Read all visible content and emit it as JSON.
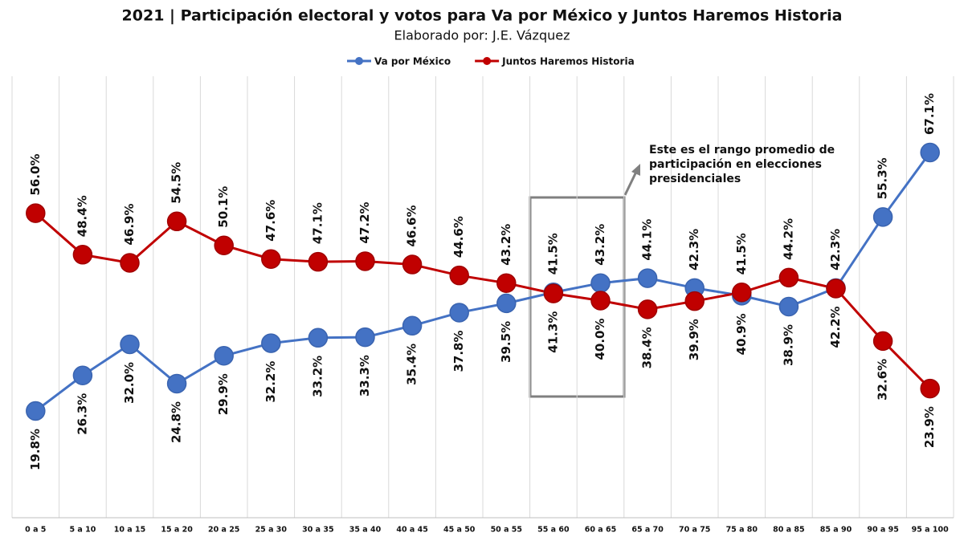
{
  "chart_data": {
    "type": "line",
    "title": "2021 | Participación electoral y votos para Va por México y Juntos Haremos Historia",
    "subtitle": "Elaborado por: J.E. Vázquez",
    "annotation": [
      "Este es el rango promedio de",
      "participación en elecciones",
      "presidenciales"
    ],
    "categories": [
      "0 a 5",
      "5 a 10",
      "10 a 15",
      "15 a 20",
      "20 a 25",
      "25 a 30",
      "30 a 35",
      "35 a 40",
      "40 a 45",
      "45 a 50",
      "50 a 55",
      "55 a 60",
      "60 a 65",
      "65 a 70",
      "70 a 75",
      "75 a 80",
      "80 a 85",
      "85 a 90",
      "90 a 95",
      "95 a 100"
    ],
    "series": [
      {
        "name": "Va por México",
        "color": "#4472c4",
        "values": [
          19.8,
          26.3,
          32.0,
          24.8,
          29.9,
          32.2,
          33.2,
          33.3,
          35.4,
          37.8,
          39.5,
          41.5,
          43.2,
          44.1,
          42.3,
          40.9,
          38.9,
          42.3,
          55.3,
          67.1
        ],
        "value_labels": [
          "19.8%",
          "26.3%",
          "32.0%",
          "24.8%",
          "29.9%",
          "32.2%",
          "33.2%",
          "33.3%",
          "35.4%",
          "37.8%",
          "39.5%",
          "41.5%",
          "43.2%",
          "44.1%",
          "42.3%",
          "40.9%",
          "38.9%",
          "42.3%",
          "55.3%",
          "67.1%"
        ]
      },
      {
        "name": "Juntos Haremos Historia",
        "color": "#c00000",
        "values": [
          56.0,
          48.4,
          46.9,
          54.5,
          50.1,
          47.6,
          47.1,
          47.2,
          46.6,
          44.6,
          43.2,
          41.3,
          40.0,
          38.4,
          39.9,
          41.5,
          44.2,
          42.2,
          32.6,
          23.9
        ],
        "value_labels": [
          "56.0%",
          "48.4%",
          "46.9%",
          "54.5%",
          "50.1%",
          "47.6%",
          "47.1%",
          "47.2%",
          "46.6%",
          "44.6%",
          "43.2%",
          "41.3%",
          "40.0%",
          "38.4%",
          "39.9%",
          "41.5%",
          "44.2%",
          "42.2%",
          "32.6%",
          "23.9%"
        ]
      }
    ]
  }
}
